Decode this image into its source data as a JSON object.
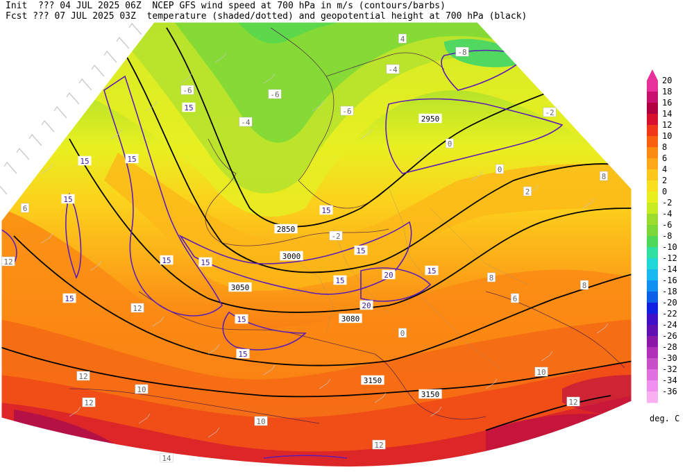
{
  "header": {
    "init_line": "Init  ??? 04 JUL 2025 06Z  NCEP GFS wind speed at 700 hPa in m/s (contours/barbs)",
    "fcst_line": "Fcst ??? 07 JUL 2025 03Z  temperature (shaded/dotted) and geopotential height at 700 hPa (black)"
  },
  "colorbar": {
    "units": "deg. C",
    "levels": [
      "20",
      "18",
      "16",
      "14",
      "12",
      "10",
      "8",
      "6",
      "4",
      "2",
      "0",
      "-2",
      "-4",
      "-6",
      "-8",
      "-10",
      "-12",
      "-14",
      "-16",
      "-18",
      "-20",
      "-22",
      "-24",
      "-26",
      "-28",
      "-30",
      "-32",
      "-34",
      "-36"
    ],
    "colors": [
      "#e8309a",
      "#c8106e",
      "#b00040",
      "#d8102c",
      "#f03818",
      "#f86010",
      "#fa8a10",
      "#fca818",
      "#fcc81c",
      "#f8e020",
      "#e8f020",
      "#c8ec22",
      "#9cdc2e",
      "#7cd838",
      "#50d858",
      "#30e0a0",
      "#20d8d8",
      "#18b8f0",
      "#1090f0",
      "#0c60e8",
      "#1020e0",
      "#4010c8",
      "#6010b0",
      "#8c18a8",
      "#b030b8",
      "#c850c8",
      "#e070e0",
      "#f090f0",
      "#f8b0f0"
    ]
  },
  "map": {
    "height_labels": [
      "2950",
      "2850",
      "3000",
      "3050",
      "3080",
      "3150",
      "3150"
    ],
    "wind_labels": [
      "15",
      "15",
      "15",
      "15",
      "15",
      "15",
      "15",
      "20",
      "20",
      "15",
      "15",
      "15",
      "15",
      "15",
      "15"
    ],
    "temp_labels": [
      "-6",
      "-6",
      "-6",
      "-8",
      "-4",
      "0",
      "0",
      "2",
      "6",
      "8",
      "8",
      "6",
      "10",
      "12",
      "12",
      "14",
      "10",
      "12",
      "12",
      "10",
      "12",
      "12",
      "8",
      "4",
      "-4",
      "-2",
      "-2",
      "0"
    ]
  }
}
